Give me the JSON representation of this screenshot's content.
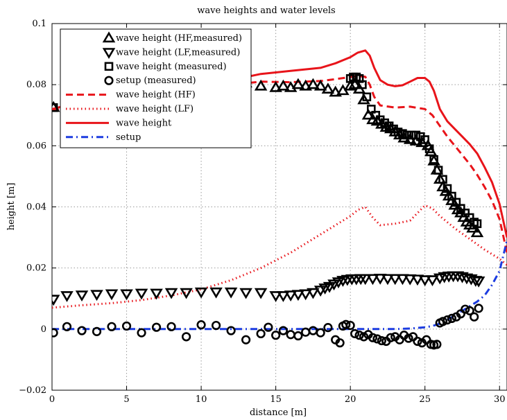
{
  "chart_data": {
    "type": "line",
    "title": "wave heights and water levels",
    "xlabel": "distance [m]",
    "ylabel": "height [m]",
    "xlim": [
      0,
      30.5
    ],
    "ylim": [
      -0.02,
      0.1
    ],
    "xticks": [
      0,
      5,
      10,
      15,
      20,
      25,
      30
    ],
    "yticks": [
      -0.02,
      0,
      0.02,
      0.04,
      0.06,
      0.08,
      0.1
    ],
    "xtick_labels": [
      "0",
      "5",
      "10",
      "15",
      "20",
      "25",
      "30"
    ],
    "ytick_labels": [
      "−0.02",
      "0",
      "0.02",
      "0.04",
      "0.06",
      "0.08",
      "0.1"
    ],
    "grid": true,
    "legend_position": "top-left",
    "series": [
      {
        "name": "wave height (HF,measured)",
        "style": "marker",
        "marker": "triangle-up",
        "color": "#000000",
        "x": [
          0.1,
          2,
          4,
          6,
          8,
          10,
          12,
          13,
          14,
          15,
          15.5,
          16,
          16.5,
          17,
          17.5,
          18,
          18.5,
          19,
          19.5,
          20,
          20.3,
          20.6,
          20.9,
          21.2,
          21.5,
          21.8,
          22.1,
          22.4,
          22.7,
          23,
          23.3,
          23.6,
          24,
          24.4,
          24.8,
          25.2,
          25.4,
          25.6,
          25.8,
          26,
          26.2,
          26.4,
          26.6,
          26.8,
          27,
          27.2,
          27.4,
          27.6,
          27.8,
          28,
          28.2,
          28.5
        ],
        "y": [
          0.0725,
          0.075,
          0.076,
          0.077,
          0.078,
          0.079,
          0.08,
          0.0805,
          0.0795,
          0.079,
          0.0795,
          0.079,
          0.08,
          0.0795,
          0.08,
          0.0795,
          0.0785,
          0.0775,
          0.078,
          0.0795,
          0.08,
          0.0785,
          0.075,
          0.07,
          0.0685,
          0.068,
          0.067,
          0.066,
          0.0655,
          0.0645,
          0.0635,
          0.0625,
          0.062,
          0.0615,
          0.061,
          0.06,
          0.058,
          0.055,
          0.052,
          0.049,
          0.0465,
          0.045,
          0.0435,
          0.042,
          0.0405,
          0.039,
          0.038,
          0.0365,
          0.035,
          0.034,
          0.033,
          0.0315
        ]
      },
      {
        "name": "wave height (LF,measured)",
        "style": "marker",
        "marker": "triangle-down",
        "color": "#000000",
        "x": [
          0.1,
          1,
          2,
          3,
          4,
          5,
          6,
          7,
          8,
          9,
          10,
          11,
          12,
          13,
          14,
          15,
          15.5,
          16,
          16.5,
          17,
          17.5,
          18,
          18.3,
          18.6,
          18.9,
          19.2,
          19.5,
          19.8,
          20.1,
          20.4,
          20.7,
          21,
          21.5,
          22,
          22.5,
          23,
          23.5,
          24,
          24.5,
          25,
          25.5,
          26,
          26.3,
          26.6,
          26.9,
          27.2,
          27.5,
          27.8,
          28.1,
          28.4,
          28.6
        ],
        "y": [
          0.0098,
          0.011,
          0.0112,
          0.0114,
          0.0116,
          0.0116,
          0.0118,
          0.0118,
          0.012,
          0.012,
          0.0122,
          0.0122,
          0.0122,
          0.012,
          0.012,
          0.011,
          0.011,
          0.0112,
          0.0114,
          0.0116,
          0.012,
          0.0128,
          0.0135,
          0.014,
          0.0148,
          0.0155,
          0.016,
          0.0163,
          0.0165,
          0.0165,
          0.0166,
          0.0166,
          0.0166,
          0.0167,
          0.0166,
          0.0166,
          0.0166,
          0.0165,
          0.0164,
          0.0162,
          0.0162,
          0.0168,
          0.0172,
          0.0174,
          0.0175,
          0.0175,
          0.0172,
          0.0168,
          0.0165,
          0.016,
          0.0158
        ]
      },
      {
        "name": "wave height (measured)",
        "style": "marker",
        "marker": "square",
        "color": "#000000",
        "x": [
          0.1,
          20,
          20.2,
          20.4,
          20.6,
          20.8,
          21.1,
          21.4,
          21.7,
          22,
          22.3,
          22.6,
          22.9,
          23.2,
          23.5,
          23.8,
          24.1,
          24.4,
          24.7,
          25,
          25.3,
          25.6,
          25.9,
          26.2,
          26.5,
          26.8,
          27.1,
          27.4,
          27.7,
          28,
          28.3,
          28.5
        ],
        "y": [
          0.0725,
          0.082,
          0.0825,
          0.0825,
          0.082,
          0.08,
          0.076,
          0.072,
          0.07,
          0.0685,
          0.0675,
          0.0665,
          0.0655,
          0.0645,
          0.064,
          0.0635,
          0.0635,
          0.0635,
          0.063,
          0.062,
          0.059,
          0.0555,
          0.052,
          0.049,
          0.046,
          0.0435,
          0.0415,
          0.0395,
          0.038,
          0.0365,
          0.035,
          0.0345
        ]
      },
      {
        "name": "setup (measured)",
        "style": "marker",
        "marker": "circle",
        "color": "#000000",
        "x": [
          0.1,
          1,
          2,
          3,
          4,
          5,
          6,
          7,
          8,
          9,
          10,
          11,
          12,
          13,
          14,
          14.5,
          15,
          15.5,
          16,
          16.5,
          17,
          17.5,
          18,
          18.5,
          19,
          19.3,
          19.5,
          19.7,
          20,
          20.3,
          20.6,
          20.9,
          21.2,
          21.5,
          21.8,
          22.1,
          22.4,
          22.7,
          23,
          23.3,
          23.6,
          23.9,
          24.2,
          24.5,
          24.8,
          25.1,
          25.4,
          25.6,
          25.8,
          26,
          26.2,
          26.5,
          26.8,
          27.1,
          27.4,
          27.7,
          28,
          28.3,
          28.6
        ],
        "y": [
          -0.0012,
          0.0008,
          -0.0005,
          -0.0008,
          0.0008,
          0.001,
          -0.0012,
          0.0006,
          0.0008,
          -0.0025,
          0.0014,
          0.0012,
          -0.0005,
          -0.0035,
          -0.0015,
          0.0006,
          -0.002,
          -0.0005,
          -0.0018,
          -0.0022,
          -0.001,
          -0.0005,
          -0.0012,
          0.0005,
          -0.0035,
          -0.0045,
          0.001,
          0.0015,
          0.0012,
          -0.0015,
          -0.002,
          -0.0025,
          -0.0018,
          -0.0028,
          -0.0032,
          -0.0038,
          -0.004,
          -0.0028,
          -0.0025,
          -0.0035,
          -0.002,
          -0.003,
          -0.0025,
          -0.004,
          -0.0045,
          -0.0035,
          -0.005,
          -0.0052,
          -0.005,
          0.002,
          0.0025,
          0.003,
          0.0035,
          0.004,
          0.005,
          0.0065,
          0.006,
          0.004,
          0.0068
        ]
      },
      {
        "name": "wave height (HF)",
        "style": "line",
        "dash": "dashed",
        "color": "#e8141a",
        "x": [
          0,
          2,
          4,
          6,
          8,
          10,
          12,
          14,
          16,
          18,
          19,
          20,
          20.5,
          21,
          21.3,
          21.6,
          22,
          23,
          24,
          25,
          25.5,
          26,
          26.5,
          27,
          27.5,
          28,
          28.5,
          29,
          29.5,
          30,
          30.5
        ],
        "y": [
          0.0715,
          0.0735,
          0.0755,
          0.077,
          0.078,
          0.0795,
          0.08,
          0.081,
          0.0808,
          0.0812,
          0.0818,
          0.0825,
          0.0828,
          0.0826,
          0.08,
          0.076,
          0.0732,
          0.0725,
          0.0728,
          0.072,
          0.07,
          0.0665,
          0.063,
          0.06,
          0.057,
          0.054,
          0.0505,
          0.0465,
          0.042,
          0.036,
          0.025
        ]
      },
      {
        "name": "wave height (LF)",
        "style": "line",
        "dash": "dotted",
        "color": "#e8141a",
        "x": [
          0,
          2,
          4,
          6,
          8,
          10,
          12,
          14,
          16,
          17,
          18,
          19,
          20,
          20.5,
          21,
          21.5,
          22,
          23,
          24,
          24.5,
          25,
          25.5,
          26,
          27,
          28,
          29,
          30,
          30.5
        ],
        "y": [
          0.007,
          0.0078,
          0.0085,
          0.0095,
          0.011,
          0.013,
          0.016,
          0.02,
          0.025,
          0.028,
          0.031,
          0.034,
          0.037,
          0.039,
          0.04,
          0.0365,
          0.034,
          0.0345,
          0.0355,
          0.038,
          0.0405,
          0.0395,
          0.037,
          0.033,
          0.0295,
          0.026,
          0.023,
          0.021
        ]
      },
      {
        "name": "wave height",
        "style": "line",
        "dash": "solid",
        "color": "#e8141a",
        "x": [
          0,
          2,
          4,
          6,
          8,
          10,
          12,
          14,
          16,
          18,
          19,
          20,
          20.5,
          21,
          21.3,
          21.6,
          22,
          22.5,
          23,
          23.5,
          24,
          24.5,
          25,
          25.3,
          25.6,
          26,
          26.5,
          27,
          27.5,
          28,
          28.5,
          29,
          29.5,
          30,
          30.5
        ],
        "y": [
          0.072,
          0.0745,
          0.0765,
          0.078,
          0.0795,
          0.0805,
          0.0815,
          0.0835,
          0.0845,
          0.0855,
          0.087,
          0.089,
          0.0905,
          0.0912,
          0.0895,
          0.0855,
          0.0815,
          0.08,
          0.0795,
          0.0798,
          0.081,
          0.0822,
          0.0822,
          0.081,
          0.078,
          0.072,
          0.068,
          0.0655,
          0.063,
          0.0605,
          0.0575,
          0.053,
          0.048,
          0.041,
          0.03
        ]
      },
      {
        "name": "setup",
        "style": "line",
        "dash": "dashdot",
        "color": "#1c3ce0",
        "x": [
          0,
          5,
          10,
          15,
          19,
          20,
          21,
          22,
          23,
          24,
          25,
          25.5,
          26,
          26.5,
          27,
          27.5,
          28,
          28.5,
          29,
          29.5,
          30,
          30.5
        ],
        "y": [
          0,
          0,
          0,
          0,
          0,
          0,
          0,
          0,
          0,
          0.0002,
          0.0006,
          0.001,
          0.0018,
          0.003,
          0.0045,
          0.006,
          0.0075,
          0.009,
          0.011,
          0.0145,
          0.019,
          0.029
        ]
      }
    ]
  }
}
